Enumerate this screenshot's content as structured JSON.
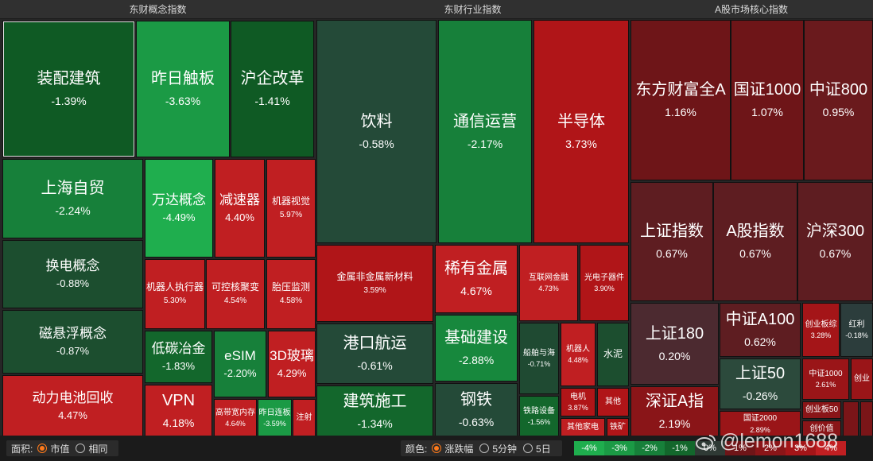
{
  "panels": {
    "concept": {
      "title": "东财概念指数"
    },
    "industry": {
      "title": "东财行业指数"
    },
    "core": {
      "title": "A股市场核心指数"
    }
  },
  "concept_tiles": [
    {
      "name": "装配建筑",
      "pct": "-1.39%",
      "color": "#0f5a24"
    },
    {
      "name": "昨日触板",
      "pct": "-3.63%",
      "color": "#1b9a45"
    },
    {
      "name": "沪企改革",
      "pct": "-1.41%",
      "color": "#0f5a24"
    },
    {
      "name": "上海自贸",
      "pct": "-2.24%",
      "color": "#17803a"
    },
    {
      "name": "换电概念",
      "pct": "-0.88%",
      "color": "#1c4e2f"
    },
    {
      "name": "磁悬浮概念",
      "pct": "-0.87%",
      "color": "#1c4e2f"
    },
    {
      "name": "动力电池回收",
      "pct": "4.47%",
      "color": "#c01f22"
    },
    {
      "name": "万达概念",
      "pct": "-4.49%",
      "color": "#1fae4e"
    },
    {
      "name": "减速器",
      "pct": "4.40%",
      "color": "#c01f22"
    },
    {
      "name": "机器视觉",
      "pct": "5.97%",
      "color": "#c01f22"
    },
    {
      "name": "机器人执行器",
      "pct": "5.30%",
      "color": "#c01f22"
    },
    {
      "name": "可控核聚变",
      "pct": "4.54%",
      "color": "#c01f22"
    },
    {
      "name": "胎压监测",
      "pct": "4.58%",
      "color": "#c01f22"
    },
    {
      "name": "低碳冶金",
      "pct": "-1.83%",
      "color": "#13672c"
    },
    {
      "name": "eSIM",
      "pct": "-2.20%",
      "color": "#17803a"
    },
    {
      "name": "3D玻璃",
      "pct": "4.29%",
      "color": "#c01f22"
    },
    {
      "name": "VPN",
      "pct": "4.18%",
      "color": "#c01f22"
    },
    {
      "name": "高带宽内存",
      "pct": "4.64%",
      "color": "#c01f22"
    },
    {
      "name": "昨日连板",
      "pct": "-3.59%",
      "color": "#1b9a45"
    },
    {
      "name": "注射",
      "pct": "",
      "color": "#c01f22"
    }
  ],
  "industry_tiles": [
    {
      "name": "饮料",
      "pct": "-0.58%",
      "color": "#244a38"
    },
    {
      "name": "通信运营",
      "pct": "-2.17%",
      "color": "#17803a"
    },
    {
      "name": "半导体",
      "pct": "3.73%",
      "color": "#b01518"
    },
    {
      "name": "金属非金属新材料",
      "pct": "3.59%",
      "color": "#b01518"
    },
    {
      "name": "稀有金属",
      "pct": "4.67%",
      "color": "#c01f22"
    },
    {
      "name": "互联网金融",
      "pct": "4.73%",
      "color": "#c01f22"
    },
    {
      "name": "光电子器件",
      "pct": "3.90%",
      "color": "#b01518"
    },
    {
      "name": "港口航运",
      "pct": "-0.61%",
      "color": "#244a38"
    },
    {
      "name": "基础建设",
      "pct": "-2.88%",
      "color": "#17883d"
    },
    {
      "name": "船舶与海",
      "pct": "-0.71%",
      "color": "#1f4a32"
    },
    {
      "name": "机器人",
      "pct": "4.48%",
      "color": "#c01f22"
    },
    {
      "name": "水泥",
      "pct": "",
      "color": "#1c4e2f"
    },
    {
      "name": "建筑施工",
      "pct": "-1.34%",
      "color": "#13672c"
    },
    {
      "name": "钢铁",
      "pct": "-0.63%",
      "color": "#244a38"
    },
    {
      "name": "铁路设备",
      "pct": "-1.56%",
      "color": "#13672c"
    },
    {
      "name": "电机",
      "pct": "3.87%",
      "color": "#b01518"
    },
    {
      "name": "其他",
      "pct": "",
      "color": "#b01518"
    },
    {
      "name": "其他家电",
      "pct": "",
      "color": "#c01f22"
    },
    {
      "name": "铁矿",
      "pct": "",
      "color": "#b01518"
    }
  ],
  "core_tiles": [
    {
      "name": "东方财富全A",
      "pct": "1.16%",
      "color": "#6e1518"
    },
    {
      "name": "国证1000",
      "pct": "1.07%",
      "color": "#6e1518"
    },
    {
      "name": "中证800",
      "pct": "0.95%",
      "color": "#6a1a1d"
    },
    {
      "name": "上证指数",
      "pct": "0.67%",
      "color": "#5e1d21"
    },
    {
      "name": "A股指数",
      "pct": "0.67%",
      "color": "#5e1d21"
    },
    {
      "name": "沪深300",
      "pct": "0.67%",
      "color": "#5e1d21"
    },
    {
      "name": "上证180",
      "pct": "0.20%",
      "color": "#4c2a30"
    },
    {
      "name": "中证A100",
      "pct": "0.62%",
      "color": "#5e1d21"
    },
    {
      "name": "创业板综",
      "pct": "3.28%",
      "color": "#a41518"
    },
    {
      "name": "红利",
      "pct": "-0.18%",
      "color": "#2c3d3c"
    },
    {
      "name": "上证50",
      "pct": "-0.26%",
      "color": "#2c4a3c"
    },
    {
      "name": "深证A指",
      "pct": "2.19%",
      "color": "#8a1518"
    },
    {
      "name": "中证1000",
      "pct": "2.61%",
      "color": "#9a1518"
    },
    {
      "name": "创业",
      "pct": "",
      "color": "#9a1518"
    },
    {
      "name": "国证2000",
      "pct": "2.89%",
      "color": "#9a1518"
    },
    {
      "name": "创业板50",
      "pct": "",
      "color": "#8a1518"
    },
    {
      "name": "创价值",
      "pct": "",
      "color": "#8a1518"
    },
    {
      "name": "",
      "pct": "",
      "color": "#7a1518"
    },
    {
      "name": "",
      "pct": "",
      "color": "#7a1518"
    }
  ],
  "toolbar": {
    "area_label": "面积:",
    "area_options": [
      "市值",
      "相同"
    ],
    "color_label": "颜色:",
    "color_options": [
      "涨跌幅",
      "5分钟",
      "5日"
    ]
  },
  "legend": [
    {
      "label": "-4%",
      "color": "#1fae4e"
    },
    {
      "label": "-3%",
      "color": "#1b9a45"
    },
    {
      "label": "-2%",
      "color": "#17803a"
    },
    {
      "label": "-1%",
      "color": "#13672c"
    },
    {
      "label": "0%",
      "color": "#2f3a35"
    },
    {
      "label": "1%",
      "color": "#6e1518"
    },
    {
      "label": "2%",
      "color": "#8a1518"
    },
    {
      "label": "3%",
      "color": "#a41518"
    },
    {
      "label": "4%",
      "color": "#c01f22"
    }
  ],
  "watermark": {
    "text": "@lemon1688"
  }
}
